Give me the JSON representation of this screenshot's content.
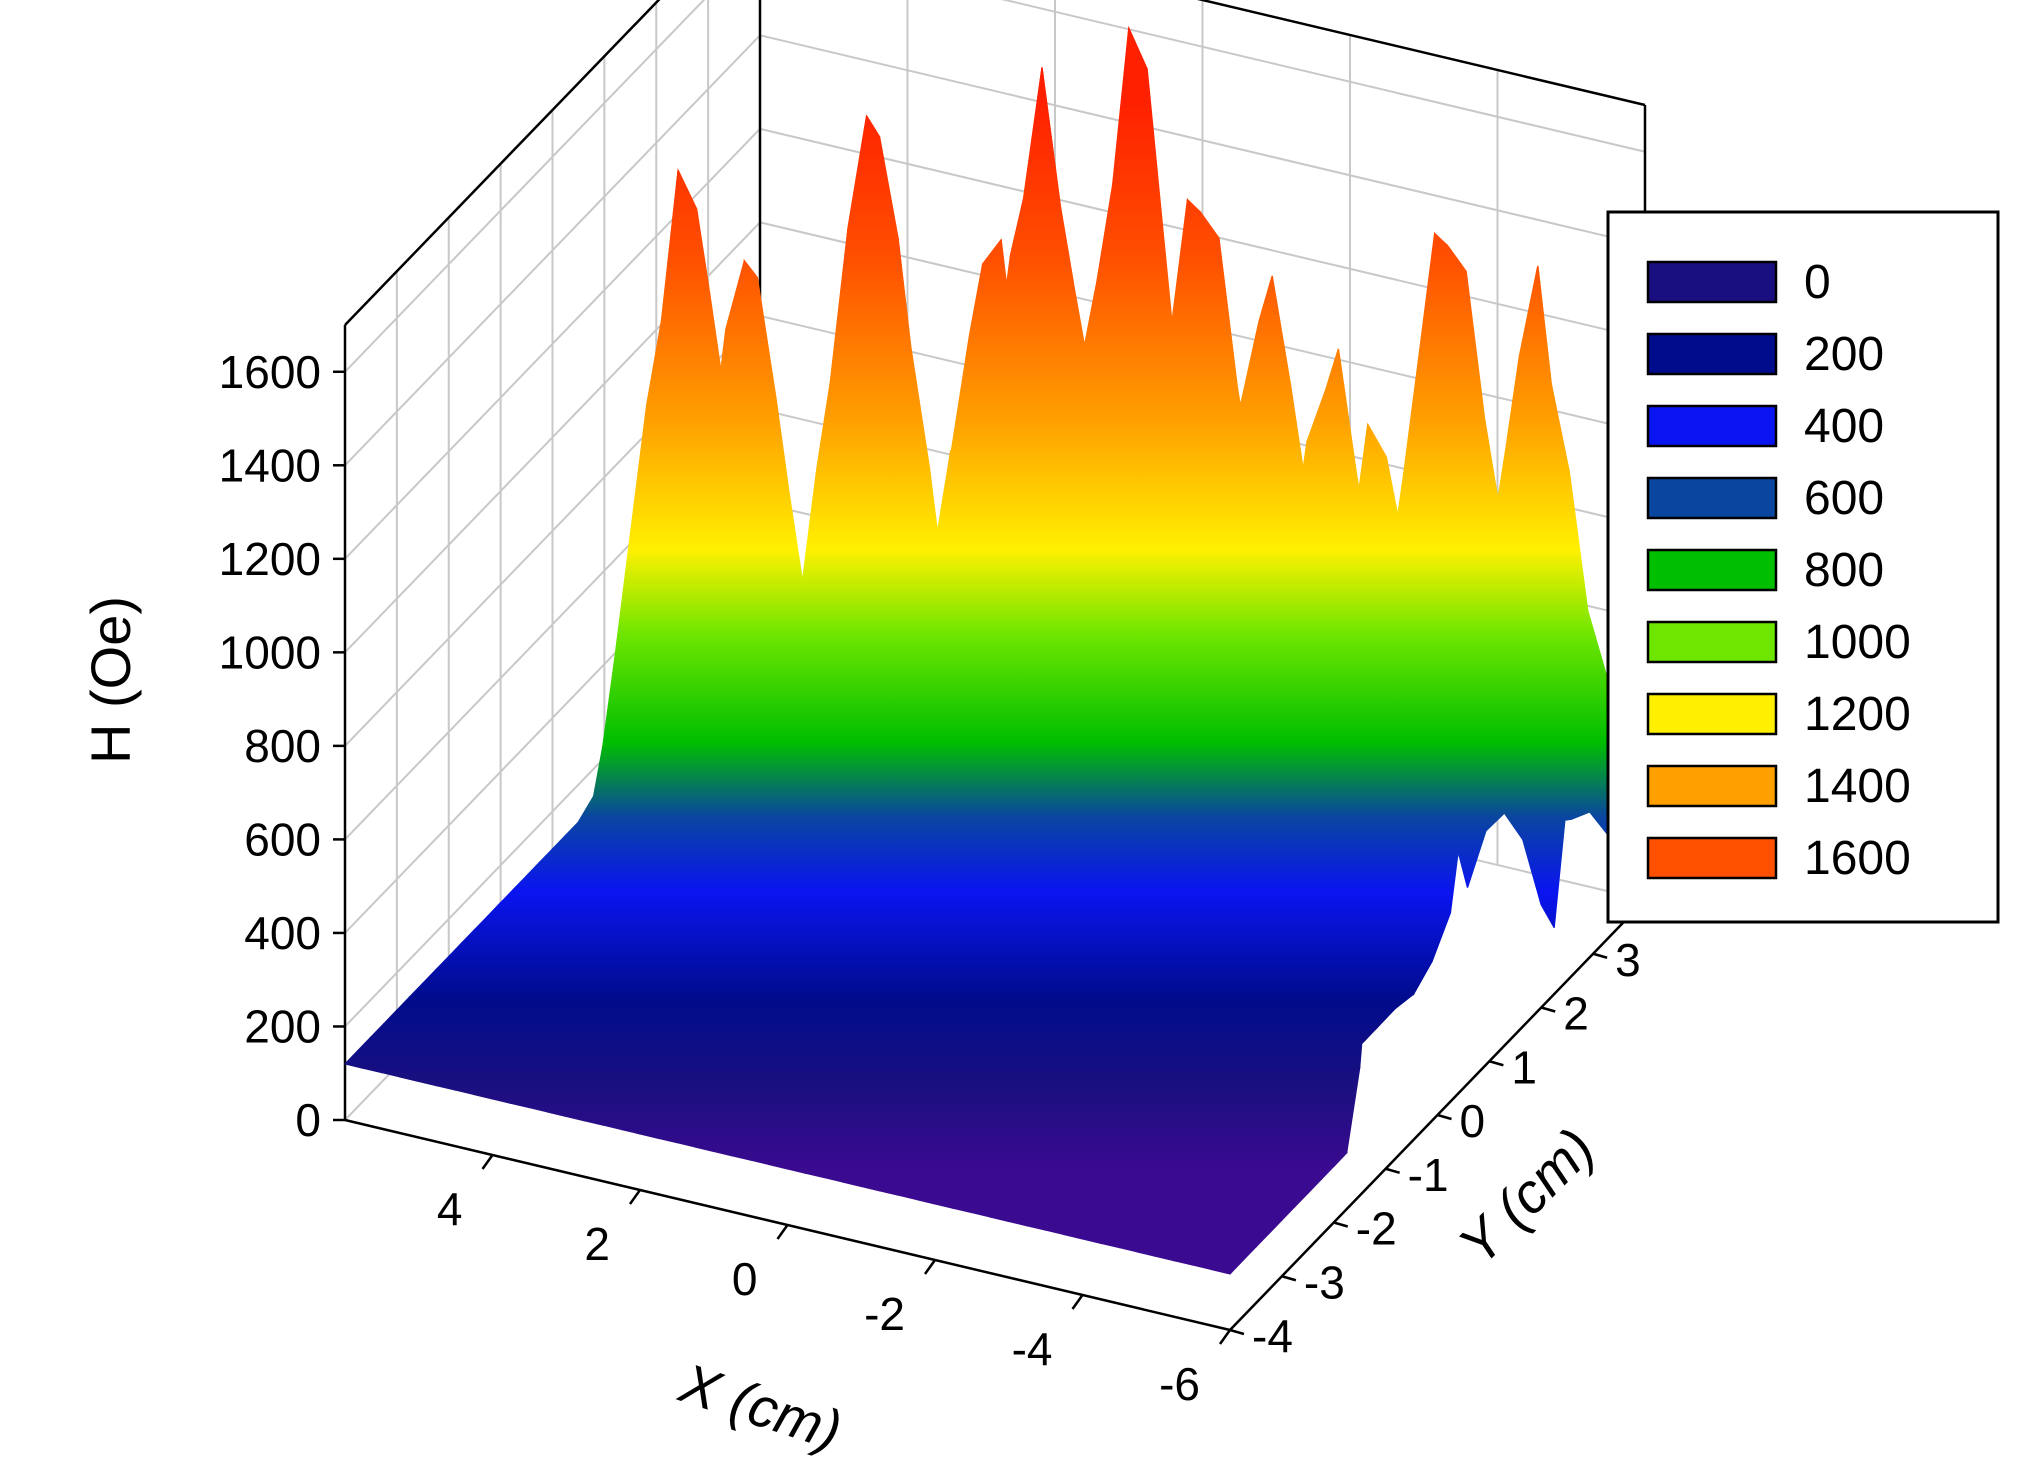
{
  "chart_data": {
    "type": "surface",
    "xlabel": "X (cm)",
    "ylabel": "Y (cm)",
    "zlabel": "H (Oe)",
    "xlim": [
      -6,
      6
    ],
    "ylim": [
      -4,
      4
    ],
    "zlim": [
      0,
      1700
    ],
    "x_ticks": [
      "4",
      "2",
      "0",
      "-2",
      "-4",
      "-6"
    ],
    "y_ticks": [
      "-4",
      "-3",
      "-2",
      "-1",
      "0",
      "1",
      "2",
      "3",
      "4"
    ],
    "z_ticks": [
      "0",
      "200",
      "400",
      "600",
      "800",
      "1000",
      "1200",
      "1400",
      "1600"
    ],
    "grid": true,
    "legend_position": "right",
    "legend": [
      {
        "label": "0",
        "color": "#1a0f80"
      },
      {
        "label": "200",
        "color": "#000c8c"
      },
      {
        "label": "400",
        "color": "#0a14f0"
      },
      {
        "label": "600",
        "color": "#0a46a0"
      },
      {
        "label": "800",
        "color": "#00be00"
      },
      {
        "label": "1000",
        "color": "#6ee600"
      },
      {
        "label": "1200",
        "color": "#fff000"
      },
      {
        "label": "1400",
        "color": "#ffa000"
      },
      {
        "label": "1600",
        "color": "#ff5000"
      }
    ],
    "peaks": [
      {
        "x": 4.9,
        "y": 1.0,
        "z": 1640
      },
      {
        "x": 3.5,
        "y": 2.6,
        "z": 1640
      },
      {
        "x": 2.0,
        "y": 3.7,
        "z": 1580
      },
      {
        "x": 3.8,
        "y": 0.6,
        "z": 1560
      },
      {
        "x": 1.6,
        "y": 2.2,
        "z": 1480
      },
      {
        "x": 0.9,
        "y": 4.0,
        "z": 1760
      },
      {
        "x": -0.6,
        "y": 3.1,
        "z": 1610
      },
      {
        "x": -0.6,
        "y": 1.6,
        "z": 1480
      },
      {
        "x": 1.3,
        "y": -0.3,
        "z": 1290
      },
      {
        "x": 0.2,
        "y": -0.4,
        "z": 1380
      },
      {
        "x": -1.4,
        "y": 0.8,
        "z": 1420
      },
      {
        "x": -2.0,
        "y": 2.4,
        "z": 1490
      },
      {
        "x": -1.6,
        "y": 0.1,
        "z": 1330
      },
      {
        "x": -3.2,
        "y": 1.9,
        "z": 1450
      },
      {
        "x": -3.6,
        "y": 3.6,
        "z": 1590
      },
      {
        "x": -4.1,
        "y": 1.5,
        "z": 1350
      },
      {
        "x": -3.2,
        "y": -0.7,
        "z": 1400
      },
      {
        "x": -4.2,
        "y": -2.0,
        "z": 1430
      },
      {
        "x": -5.2,
        "y": 3.0,
        "z": 1510
      },
      {
        "x": -5.5,
        "y": 1.2,
        "z": 1390
      },
      {
        "x": -6.0,
        "y": -0.6,
        "z": 1390
      },
      {
        "x": -6.6,
        "y": 0.8,
        "z": 1480
      },
      {
        "x": -6.7,
        "y": 3.0,
        "z": 1690
      },
      {
        "x": -1.9,
        "y": -2.5,
        "z": 1520
      }
    ]
  }
}
